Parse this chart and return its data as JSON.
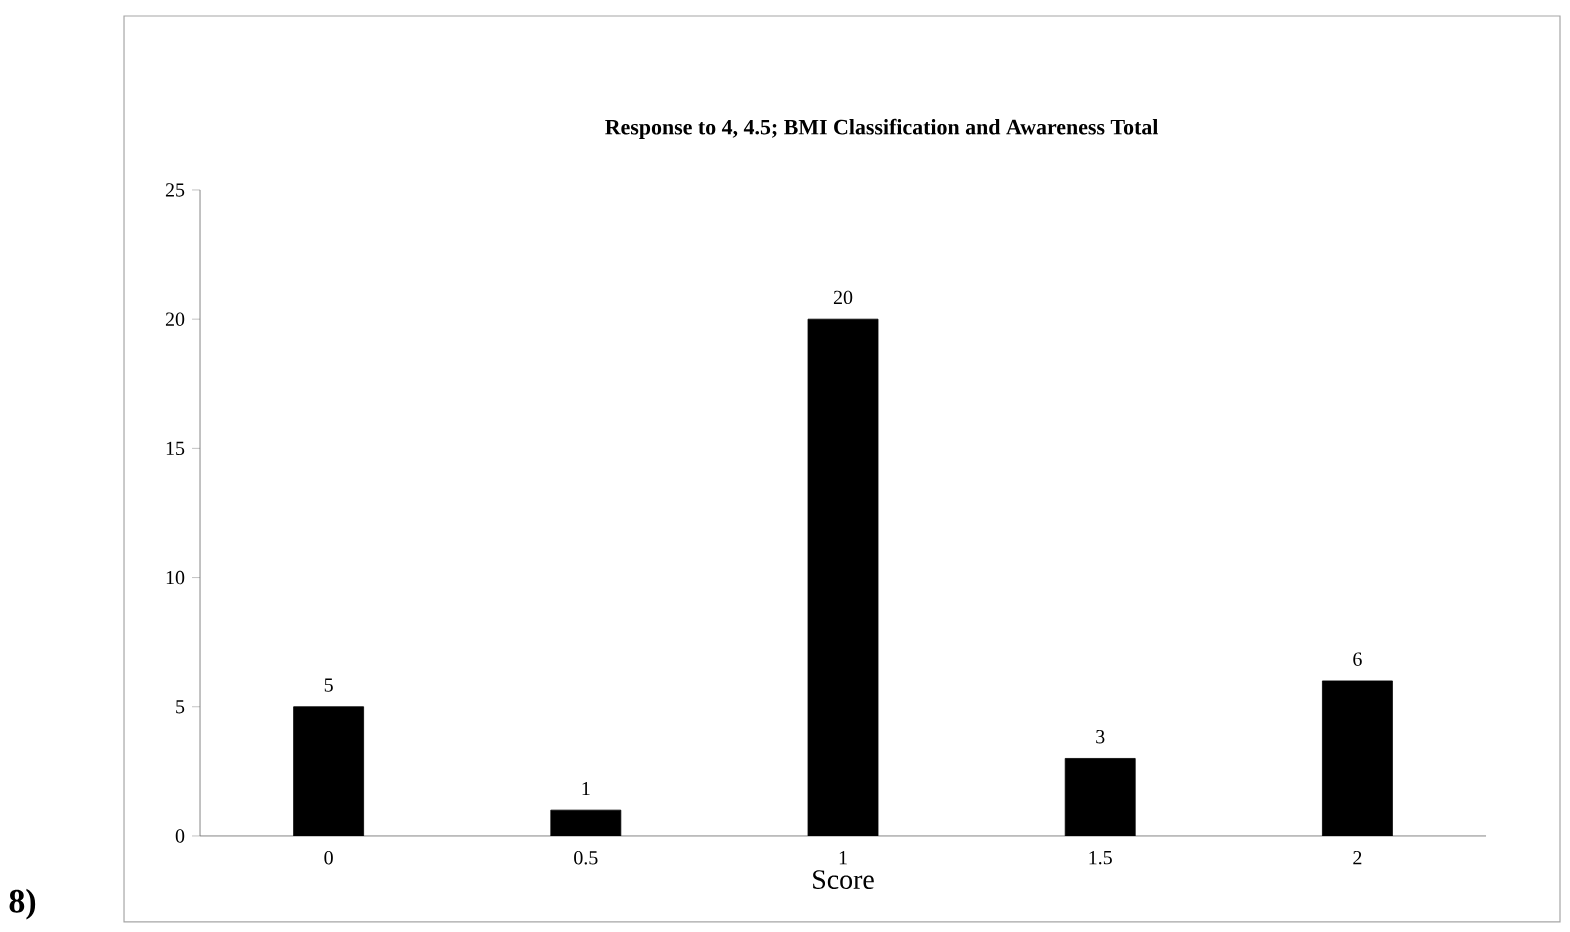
{
  "chart_data": {
    "type": "bar",
    "title": "Response to 4, 4.5; BMI Classification and Awareness Total",
    "xlabel": "Score",
    "categories": [
      "0",
      "0.5",
      "1",
      "1.5",
      "2"
    ],
    "values": [
      5,
      1,
      20,
      3,
      6
    ],
    "color": "#000000",
    "ylim": [
      0,
      25
    ],
    "yticks": [
      0,
      5,
      10,
      15,
      20,
      25
    ],
    "grid": false,
    "data_labels": true,
    "annotations": [
      "8)"
    ]
  }
}
